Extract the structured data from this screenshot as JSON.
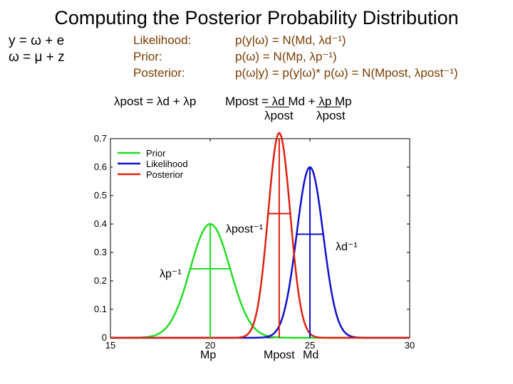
{
  "slide": {
    "title": "Computing the Posterior Probability Distribution",
    "model_line1": "y = ω + e",
    "model_line2": "ω = μ + z",
    "labels": {
      "likelihood": "Likelihood:",
      "prior": "Prior:",
      "posterior": "Posterior:"
    },
    "equations": {
      "likelihood": "p(y|ω) = N(Md, λd⁻¹)",
      "prior": "p(ω) = N(Mp, λp⁻¹)",
      "posterior": "p(ω|y) = p(y|ω)* p(ω) = N(Mpost, λpost⁻¹)"
    },
    "lambda_post_eq": "λpost = λd + λp",
    "m_post_eq": "Mpost = λd Md + λp Mp",
    "m_post_denoms": [
      "λpost",
      "λpost"
    ],
    "annotations": {
      "lpost_inv": "λpost⁻¹",
      "ld_inv": "λd⁻¹",
      "lp_inv": "λp⁻¹",
      "mp": "Mp",
      "mpost": "Mpost",
      "md": "Md"
    }
  },
  "colors": {
    "prior": "#22dd22",
    "likelihood": "#1111cc",
    "posterior": "#dd2211",
    "label_brown": "#7a3b00"
  },
  "chart_data": {
    "type": "line",
    "x_range": [
      15,
      30
    ],
    "ylim": [
      0,
      0.7
    ],
    "xticks": [
      "15",
      "20",
      "25",
      "30"
    ],
    "yticks": [
      "0",
      "0.1",
      "0.2",
      "0.3",
      "0.4",
      "0.5",
      "0.6",
      "0.7"
    ],
    "legend": {
      "position": "top-left",
      "entries": [
        "Prior",
        "Likelihood",
        "Posterior"
      ]
    },
    "series": [
      {
        "name": "Prior",
        "mean": 20,
        "precision": 1,
        "peak": 0.4
      },
      {
        "name": "Likelihood",
        "mean": 25,
        "precision": 2.25,
        "peak": 0.6
      },
      {
        "name": "Posterior",
        "mean": 23.46,
        "precision": 3.25,
        "peak": 0.72
      }
    ]
  }
}
